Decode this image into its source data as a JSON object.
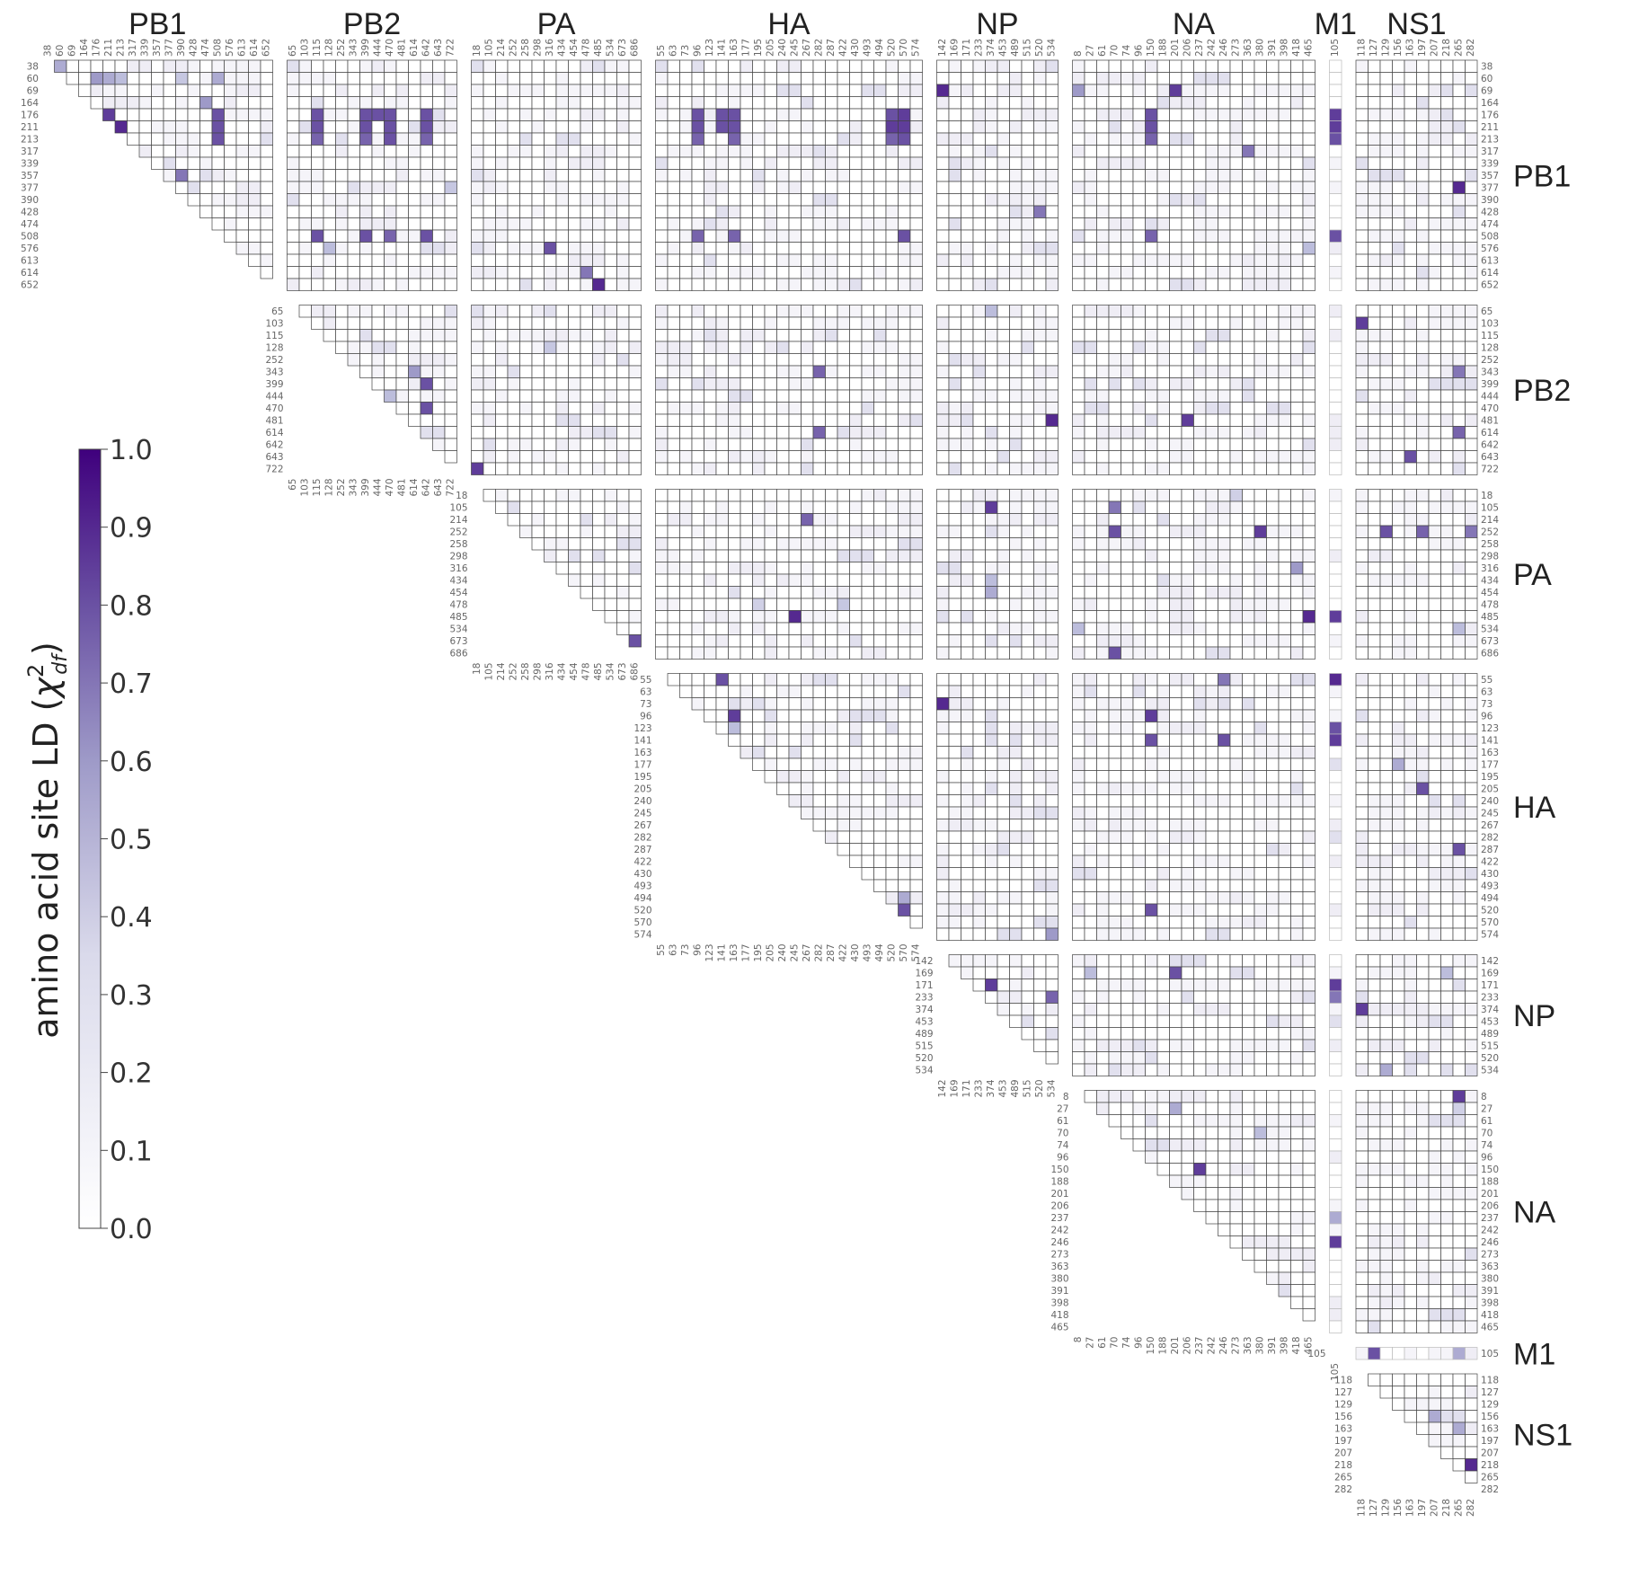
{
  "chart_data": {
    "type": "heatmap",
    "genes": [
      {
        "name": "PB1",
        "sites": [
          "38",
          "60",
          "69",
          "164",
          "176",
          "211",
          "213",
          "317",
          "339",
          "357",
          "377",
          "390",
          "428",
          "474",
          "508",
          "576",
          "613",
          "614",
          "652"
        ]
      },
      {
        "name": "PB2",
        "sites": [
          "65",
          "103",
          "115",
          "128",
          "252",
          "343",
          "399",
          "444",
          "470",
          "481",
          "614",
          "642",
          "643",
          "722"
        ]
      },
      {
        "name": "PA",
        "sites": [
          "18",
          "105",
          "214",
          "252",
          "258",
          "298",
          "316",
          "434",
          "454",
          "478",
          "485",
          "534",
          "673",
          "686"
        ]
      },
      {
        "name": "HA",
        "sites": [
          "55",
          "63",
          "73",
          "96",
          "123",
          "141",
          "163",
          "177",
          "195",
          "205",
          "240",
          "245",
          "267",
          "282",
          "287",
          "422",
          "430",
          "493",
          "494",
          "520",
          "570",
          "574"
        ]
      },
      {
        "name": "NP",
        "sites": [
          "142",
          "169",
          "171",
          "233",
          "374",
          "453",
          "489",
          "515",
          "520",
          "534"
        ]
      },
      {
        "name": "NA",
        "sites": [
          "8",
          "27",
          "61",
          "70",
          "74",
          "96",
          "150",
          "188",
          "201",
          "206",
          "237",
          "242",
          "246",
          "273",
          "363",
          "380",
          "391",
          "398",
          "418",
          "465"
        ]
      },
      {
        "name": "M1",
        "sites": [
          "105"
        ]
      },
      {
        "name": "NS1",
        "sites": [
          "118",
          "127",
          "129",
          "156",
          "163",
          "197",
          "207",
          "218",
          "265",
          "282"
        ]
      }
    ],
    "colorbar": {
      "label": "amino acid site LD (χ²_df)",
      "label_text": "amino acid site LD (",
      "label_chi": "χ",
      "label_sup": "2",
      "label_sub": "df",
      "label_close": ")",
      "min": 0.0,
      "max": 1.0,
      "ticks": [
        "0.0",
        "0.1",
        "0.2",
        "0.3",
        "0.4",
        "0.5",
        "0.6",
        "0.7",
        "0.8",
        "0.9",
        "1.0"
      ],
      "color_low": "#ffffff",
      "color_mid": "#9e9ac8",
      "color_high": "#3f007d"
    },
    "strong_links": [
      [
        "PB1:38",
        "PB1:60",
        0.55
      ],
      [
        "PB1:60",
        "PB1:176",
        0.6
      ],
      [
        "PB1:60",
        "PB1:211",
        0.55
      ],
      [
        "PB1:60",
        "PB1:213",
        0.5
      ],
      [
        "PB1:60",
        "PB1:390",
        0.45
      ],
      [
        "PB1:60",
        "PB1:508",
        0.55
      ],
      [
        "PB1:164",
        "PB1:474",
        0.6
      ],
      [
        "PB1:176",
        "PB1:211",
        0.85
      ],
      [
        "PB1:176",
        "PB1:508",
        0.8
      ],
      [
        "PB1:211",
        "PB1:213",
        0.9
      ],
      [
        "PB1:211",
        "PB1:508",
        0.8
      ],
      [
        "PB1:213",
        "PB1:508",
        0.8
      ],
      [
        "PB1:357",
        "PB1:390",
        0.7
      ],
      [
        "PB1:176",
        "PB2:115",
        0.8
      ],
      [
        "PB1:176",
        "PB2:399",
        0.8
      ],
      [
        "PB1:176",
        "PB2:444",
        0.8
      ],
      [
        "PB1:176",
        "PB2:470",
        0.8
      ],
      [
        "PB1:176",
        "PB2:642",
        0.8
      ],
      [
        "PB1:211",
        "PB2:115",
        0.8
      ],
      [
        "PB1:211",
        "PB2:399",
        0.8
      ],
      [
        "PB1:211",
        "PB2:470",
        0.8
      ],
      [
        "PB1:211",
        "PB2:642",
        0.8
      ],
      [
        "PB1:213",
        "PB2:115",
        0.75
      ],
      [
        "PB1:213",
        "PB2:399",
        0.75
      ],
      [
        "PB1:213",
        "PB2:470",
        0.8
      ],
      [
        "PB1:213",
        "PB2:642",
        0.75
      ],
      [
        "PB1:508",
        "PB2:115",
        0.8
      ],
      [
        "PB1:508",
        "PB2:399",
        0.8
      ],
      [
        "PB1:508",
        "PB2:470",
        0.75
      ],
      [
        "PB1:508",
        "PB2:642",
        0.8
      ],
      [
        "PB1:576",
        "PB2:128",
        0.5
      ],
      [
        "PB1:377",
        "PB2:722",
        0.45
      ],
      [
        "PB1:576",
        "PA:316",
        0.8
      ],
      [
        "PB1:614",
        "PA:478",
        0.7
      ],
      [
        "PB1:652",
        "PA:485",
        0.9
      ],
      [
        "PB1:176",
        "HA:96",
        0.8
      ],
      [
        "PB1:176",
        "HA:141",
        0.8
      ],
      [
        "PB1:176",
        "HA:163",
        0.8
      ],
      [
        "PB1:176",
        "HA:520",
        0.8
      ],
      [
        "PB1:176",
        "HA:570",
        0.85
      ],
      [
        "PB1:211",
        "HA:96",
        0.8
      ],
      [
        "PB1:211",
        "HA:141",
        0.8
      ],
      [
        "PB1:211",
        "HA:163",
        0.8
      ],
      [
        "PB1:211",
        "HA:520",
        0.85
      ],
      [
        "PB1:211",
        "HA:570",
        0.85
      ],
      [
        "PB1:213",
        "HA:96",
        0.75
      ],
      [
        "PB1:213",
        "HA:163",
        0.75
      ],
      [
        "PB1:213",
        "HA:520",
        0.75
      ],
      [
        "PB1:213",
        "HA:570",
        0.8
      ],
      [
        "PB1:508",
        "HA:96",
        0.75
      ],
      [
        "PB1:508",
        "HA:163",
        0.75
      ],
      [
        "PB1:508",
        "HA:570",
        0.8
      ],
      [
        "PB1:69",
        "NP:142",
        0.9
      ],
      [
        "PB1:428",
        "NP:520",
        0.7
      ],
      [
        "PB1:176",
        "NA:150",
        0.8
      ],
      [
        "PB1:211",
        "NA:150",
        0.8
      ],
      [
        "PB1:213",
        "NA:150",
        0.75
      ],
      [
        "PB1:508",
        "NA:150",
        0.75
      ],
      [
        "PB1:69",
        "NA:201",
        0.85
      ],
      [
        "PB1:69",
        "NA:8",
        0.6
      ],
      [
        "PB1:317",
        "NA:363",
        0.7
      ],
      [
        "PB1:576",
        "NA:465",
        0.5
      ],
      [
        "PB1:176",
        "M1:105",
        0.85
      ],
      [
        "PB1:211",
        "M1:105",
        0.85
      ],
      [
        "PB1:213",
        "M1:105",
        0.8
      ],
      [
        "PB1:508",
        "M1:105",
        0.8
      ],
      [
        "PB1:377",
        "NS1:265",
        0.9
      ],
      [
        "PB2:399",
        "PB2:642",
        0.8
      ],
      [
        "PB2:444",
        "PB2:470",
        0.5
      ],
      [
        "PB2:470",
        "PB2:642",
        0.8
      ],
      [
        "PB2:343",
        "PB2:614",
        0.6
      ],
      [
        "PB2:722",
        "PA:18",
        0.85
      ],
      [
        "PB2:128",
        "PA:316",
        0.45
      ],
      [
        "PB2:343",
        "HA:282",
        0.75
      ],
      [
        "PB2:614",
        "HA:282",
        0.75
      ],
      [
        "PB2:481",
        "NP:534",
        0.9
      ],
      [
        "PB2:65",
        "NP:374",
        0.5
      ],
      [
        "PB2:481",
        "NA:206",
        0.85
      ],
      [
        "PB2:103",
        "NS1:118",
        0.85
      ],
      [
        "PB2:343",
        "NS1:265",
        0.7
      ],
      [
        "PB2:614",
        "NS1:265",
        0.75
      ],
      [
        "PB2:643",
        "NS1:163",
        0.8
      ],
      [
        "PA:673",
        "PA:686",
        0.8
      ],
      [
        "PA:214",
        "HA:267",
        0.75
      ],
      [
        "PA:485",
        "HA:245",
        0.9
      ],
      [
        "PA:478",
        "HA:422",
        0.45
      ],
      [
        "PA:478",
        "HA:195",
        0.4
      ],
      [
        "PA:105",
        "NP:374",
        0.85
      ],
      [
        "PA:434",
        "NP:374",
        0.5
      ],
      [
        "PA:454",
        "NP:374",
        0.55
      ],
      [
        "PA:105",
        "NA:70",
        0.7
      ],
      [
        "PA:252",
        "NA:70",
        0.8
      ],
      [
        "PA:252",
        "NA:380",
        0.85
      ],
      [
        "PA:686",
        "NA:70",
        0.8
      ],
      [
        "PA:534",
        "NA:8",
        0.5
      ],
      [
        "PA:485",
        "NA:465",
        0.9
      ],
      [
        "PA:18",
        "NA:273",
        0.4
      ],
      [
        "PA:316",
        "NA:418",
        0.6
      ],
      [
        "PA:485",
        "M1:105",
        0.85
      ],
      [
        "PA:252",
        "NS1:129",
        0.8
      ],
      [
        "PA:252",
        "NS1:197",
        0.75
      ],
      [
        "PA:252",
        "NS1:282",
        0.7
      ],
      [
        "PA:534",
        "NS1:265",
        0.5
      ],
      [
        "HA:55",
        "HA:141",
        0.8
      ],
      [
        "HA:96",
        "HA:163",
        0.85
      ],
      [
        "HA:123",
        "HA:163",
        0.5
      ],
      [
        "HA:520",
        "HA:570",
        0.8
      ],
      [
        "HA:494",
        "HA:570",
        0.55
      ],
      [
        "HA:73",
        "NP:142",
        0.9
      ],
      [
        "HA:574",
        "NP:534",
        0.6
      ],
      [
        "HA:96",
        "NA:150",
        0.85
      ],
      [
        "HA:141",
        "NA:150",
        0.8
      ],
      [
        "HA:141",
        "NA:246",
        0.8
      ],
      [
        "HA:55",
        "NA:246",
        0.7
      ],
      [
        "HA:520",
        "NA:150",
        0.8
      ],
      [
        "HA:55",
        "M1:105",
        0.9
      ],
      [
        "HA:123",
        "M1:105",
        0.8
      ],
      [
        "HA:141",
        "M1:105",
        0.85
      ],
      [
        "HA:205",
        "NS1:197",
        0.8
      ],
      [
        "HA:287",
        "NS1:265",
        0.8
      ],
      [
        "HA:177",
        "NS1:156",
        0.55
      ],
      [
        "NP:171",
        "NP:374",
        0.85
      ],
      [
        "NP:233",
        "NP:534",
        0.75
      ],
      [
        "NP:169",
        "NA:27",
        0.5
      ],
      [
        "NP:169",
        "NA:201",
        0.8
      ],
      [
        "NP:171",
        "M1:105",
        0.85
      ],
      [
        "NP:233",
        "M1:105",
        0.7
      ],
      [
        "NP:374",
        "NS1:118",
        0.85
      ],
      [
        "NP:534",
        "NS1:129",
        0.55
      ],
      [
        "NP:169",
        "NS1:218",
        0.5
      ],
      [
        "NA:150",
        "NA:237",
        0.85
      ],
      [
        "NA:27",
        "NA:201",
        0.55
      ],
      [
        "NA:70",
        "NA:380",
        0.5
      ],
      [
        "NA:237",
        "M1:105",
        0.55
      ],
      [
        "NA:246",
        "M1:105",
        0.85
      ],
      [
        "NA:8",
        "NS1:265",
        0.85
      ],
      [
        "NA:27",
        "NS1:265",
        0.4
      ],
      [
        "M1:105",
        "NS1:127",
        0.8
      ],
      [
        "M1:105",
        "NS1:265",
        0.55
      ],
      [
        "NS1:156",
        "NS1:207",
        0.55
      ],
      [
        "NS1:163",
        "NS1:265",
        0.55
      ],
      [
        "NS1:218",
        "NS1:282",
        0.9
      ]
    ]
  }
}
